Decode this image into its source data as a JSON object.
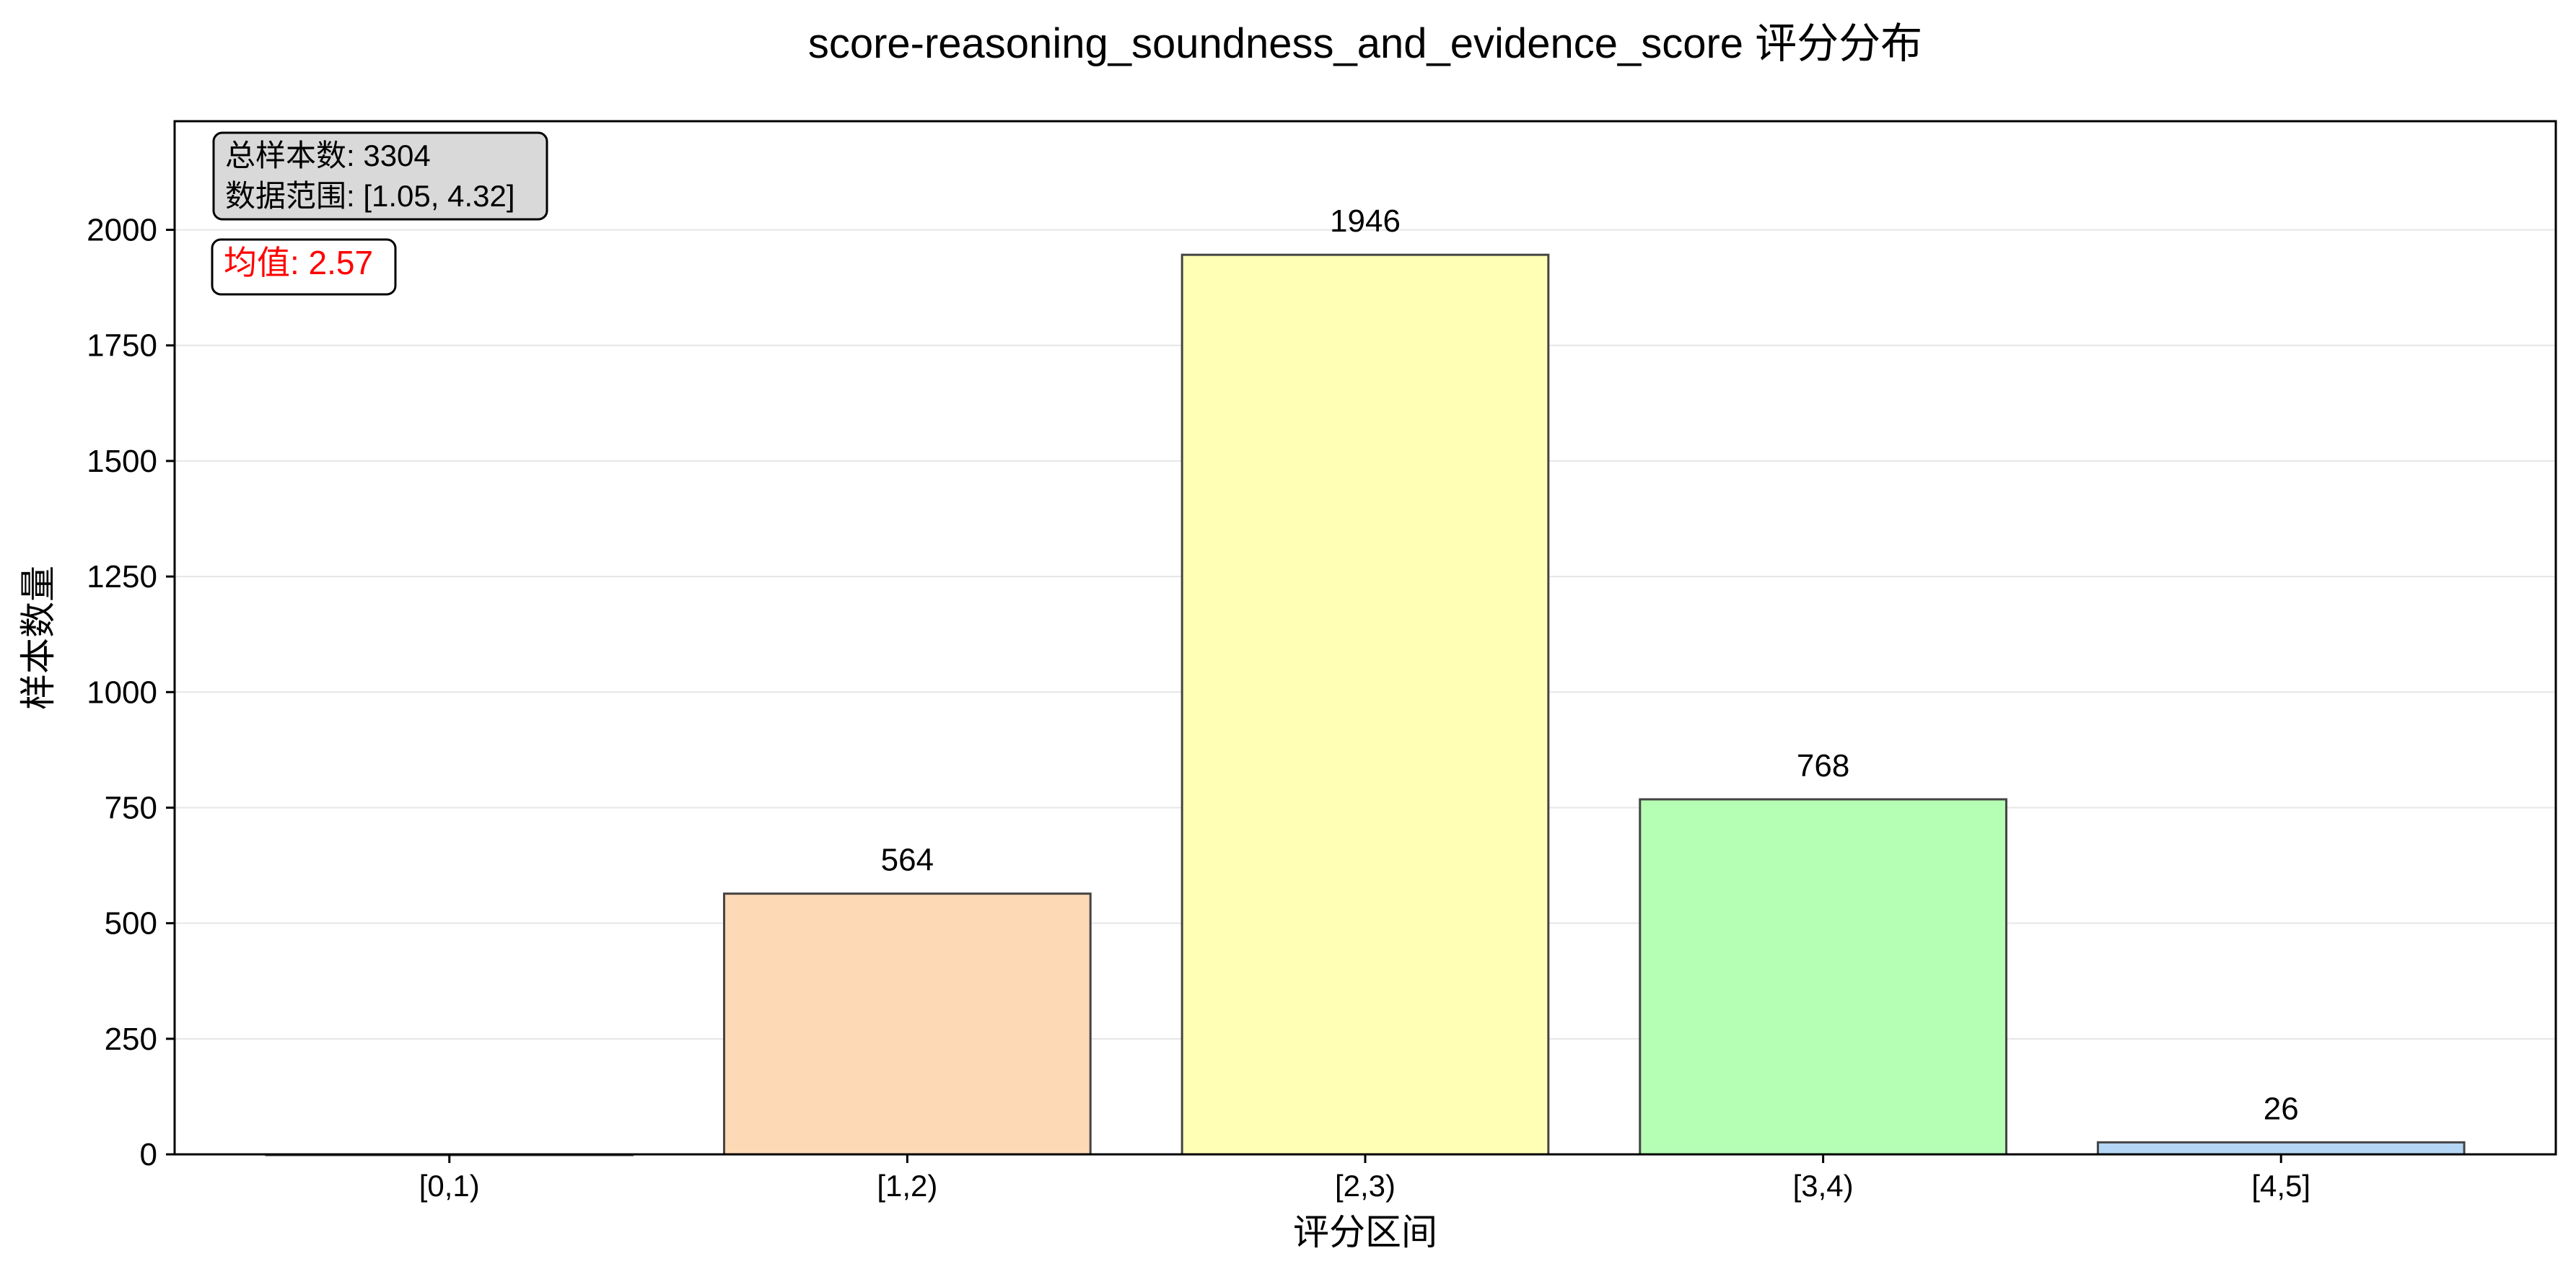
{
  "chart_data": {
    "type": "bar",
    "title": "score-reasoning_soundness_and_evidence_score 评分分布",
    "xlabel": "评分区间",
    "ylabel": "样本数量",
    "categories": [
      "[0,1)",
      "[1,2)",
      "[2,3)",
      "[3,4)",
      "[4,5]"
    ],
    "values": [
      0,
      564,
      1946,
      768,
      26
    ],
    "colors": [
      "#ffffff",
      "#fdd9b5",
      "#ffffb5",
      "#b5ffb5",
      "#b5d5f5"
    ],
    "ylim": [
      0,
      2235
    ],
    "yticks": [
      0,
      250,
      500,
      750,
      1000,
      1250,
      1500,
      1750,
      2000
    ],
    "grid": "horizontal",
    "annotations": {
      "total": "总样本数: 3304",
      "range": "数据范围: [1.05, 4.32]",
      "mean": "均值: 2.57"
    }
  }
}
